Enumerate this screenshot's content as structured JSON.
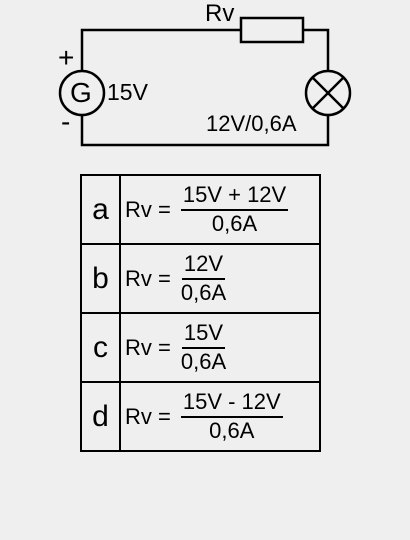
{
  "circuit": {
    "resistor_label": "Rv",
    "generator_symbol": "G",
    "generator_voltage": "15V",
    "plus_sign": "+",
    "minus_sign": "-",
    "lamp_rating": "12V/0,6A"
  },
  "options": [
    {
      "letter": "a",
      "lhs": "Rv =",
      "numerator": "15V + 12V",
      "denominator": "0,6A"
    },
    {
      "letter": "b",
      "lhs": "Rv =",
      "numerator": "12V",
      "denominator": "0,6A"
    },
    {
      "letter": "c",
      "lhs": "Rv =",
      "numerator": "15V",
      "denominator": "0,6A"
    },
    {
      "letter": "d",
      "lhs": "Rv =",
      "numerator": "15V - 12V",
      "denominator": "0,6A"
    }
  ]
}
